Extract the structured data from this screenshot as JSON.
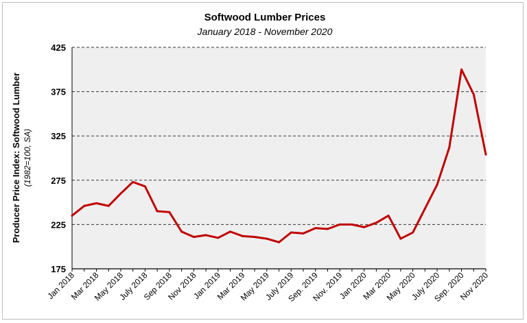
{
  "chart_data": {
    "type": "line",
    "title": "Softwood Lumber Prices",
    "subtitle": "January 2018 - November 2020",
    "ylabel": "Producer Price Index: Softwood Lumber",
    "ylabel_note": "(1982=100, SA)",
    "ylim": [
      175,
      425
    ],
    "yticks": [
      175,
      225,
      275,
      325,
      375,
      425
    ],
    "grid": "horizontal dashed",
    "line_color": "#c00000",
    "plot_background": "#efefef",
    "x": [
      "Jan 2018",
      "Feb 2018",
      "Mar 2018",
      "Apr 2018",
      "May 2018",
      "Jun 2018",
      "July 2018",
      "Aug 2018",
      "Sep 2018",
      "Oct 2018",
      "Nov 2018",
      "Dec 2018",
      "Jan 2019",
      "Feb 2019",
      "Mar 2019",
      "Apr 2019",
      "May 2019",
      "Jun 2019",
      "July 2019",
      "Aug 2019",
      "Sep. 2019",
      "Oct 2019",
      "Nov. 2019",
      "Dec 2019",
      "Jan 2020",
      "Feb 2020",
      "Mar 2020",
      "Apr 2020",
      "May 2020",
      "Jun 2020",
      "July 2020",
      "Aug 2020",
      "Sep. 2020",
      "Oct 2020",
      "Nov 2020"
    ],
    "xtick_labels": [
      "Jan 2018",
      "Mar 2018",
      "May 2018",
      "July 2018",
      "Sep 2018",
      "Nov 2018",
      "Jan 2019",
      "Mar 2019",
      "May 2019",
      "July 2019",
      "Sep. 2019",
      "Nov. 2019",
      "Jan 2020",
      "Mar 2020",
      "May 2020",
      "July 2020",
      "Sep. 2020",
      "Nov 2020"
    ],
    "series": [
      {
        "values": [
          235,
          246,
          249,
          246,
          260,
          273,
          268,
          240,
          239,
          217,
          211,
          213,
          210,
          217,
          212,
          211,
          209,
          205,
          216,
          215,
          221,
          220,
          225,
          225,
          222,
          227,
          235,
          209,
          216,
          243,
          270,
          312,
          400,
          372,
          304
        ]
      }
    ]
  }
}
